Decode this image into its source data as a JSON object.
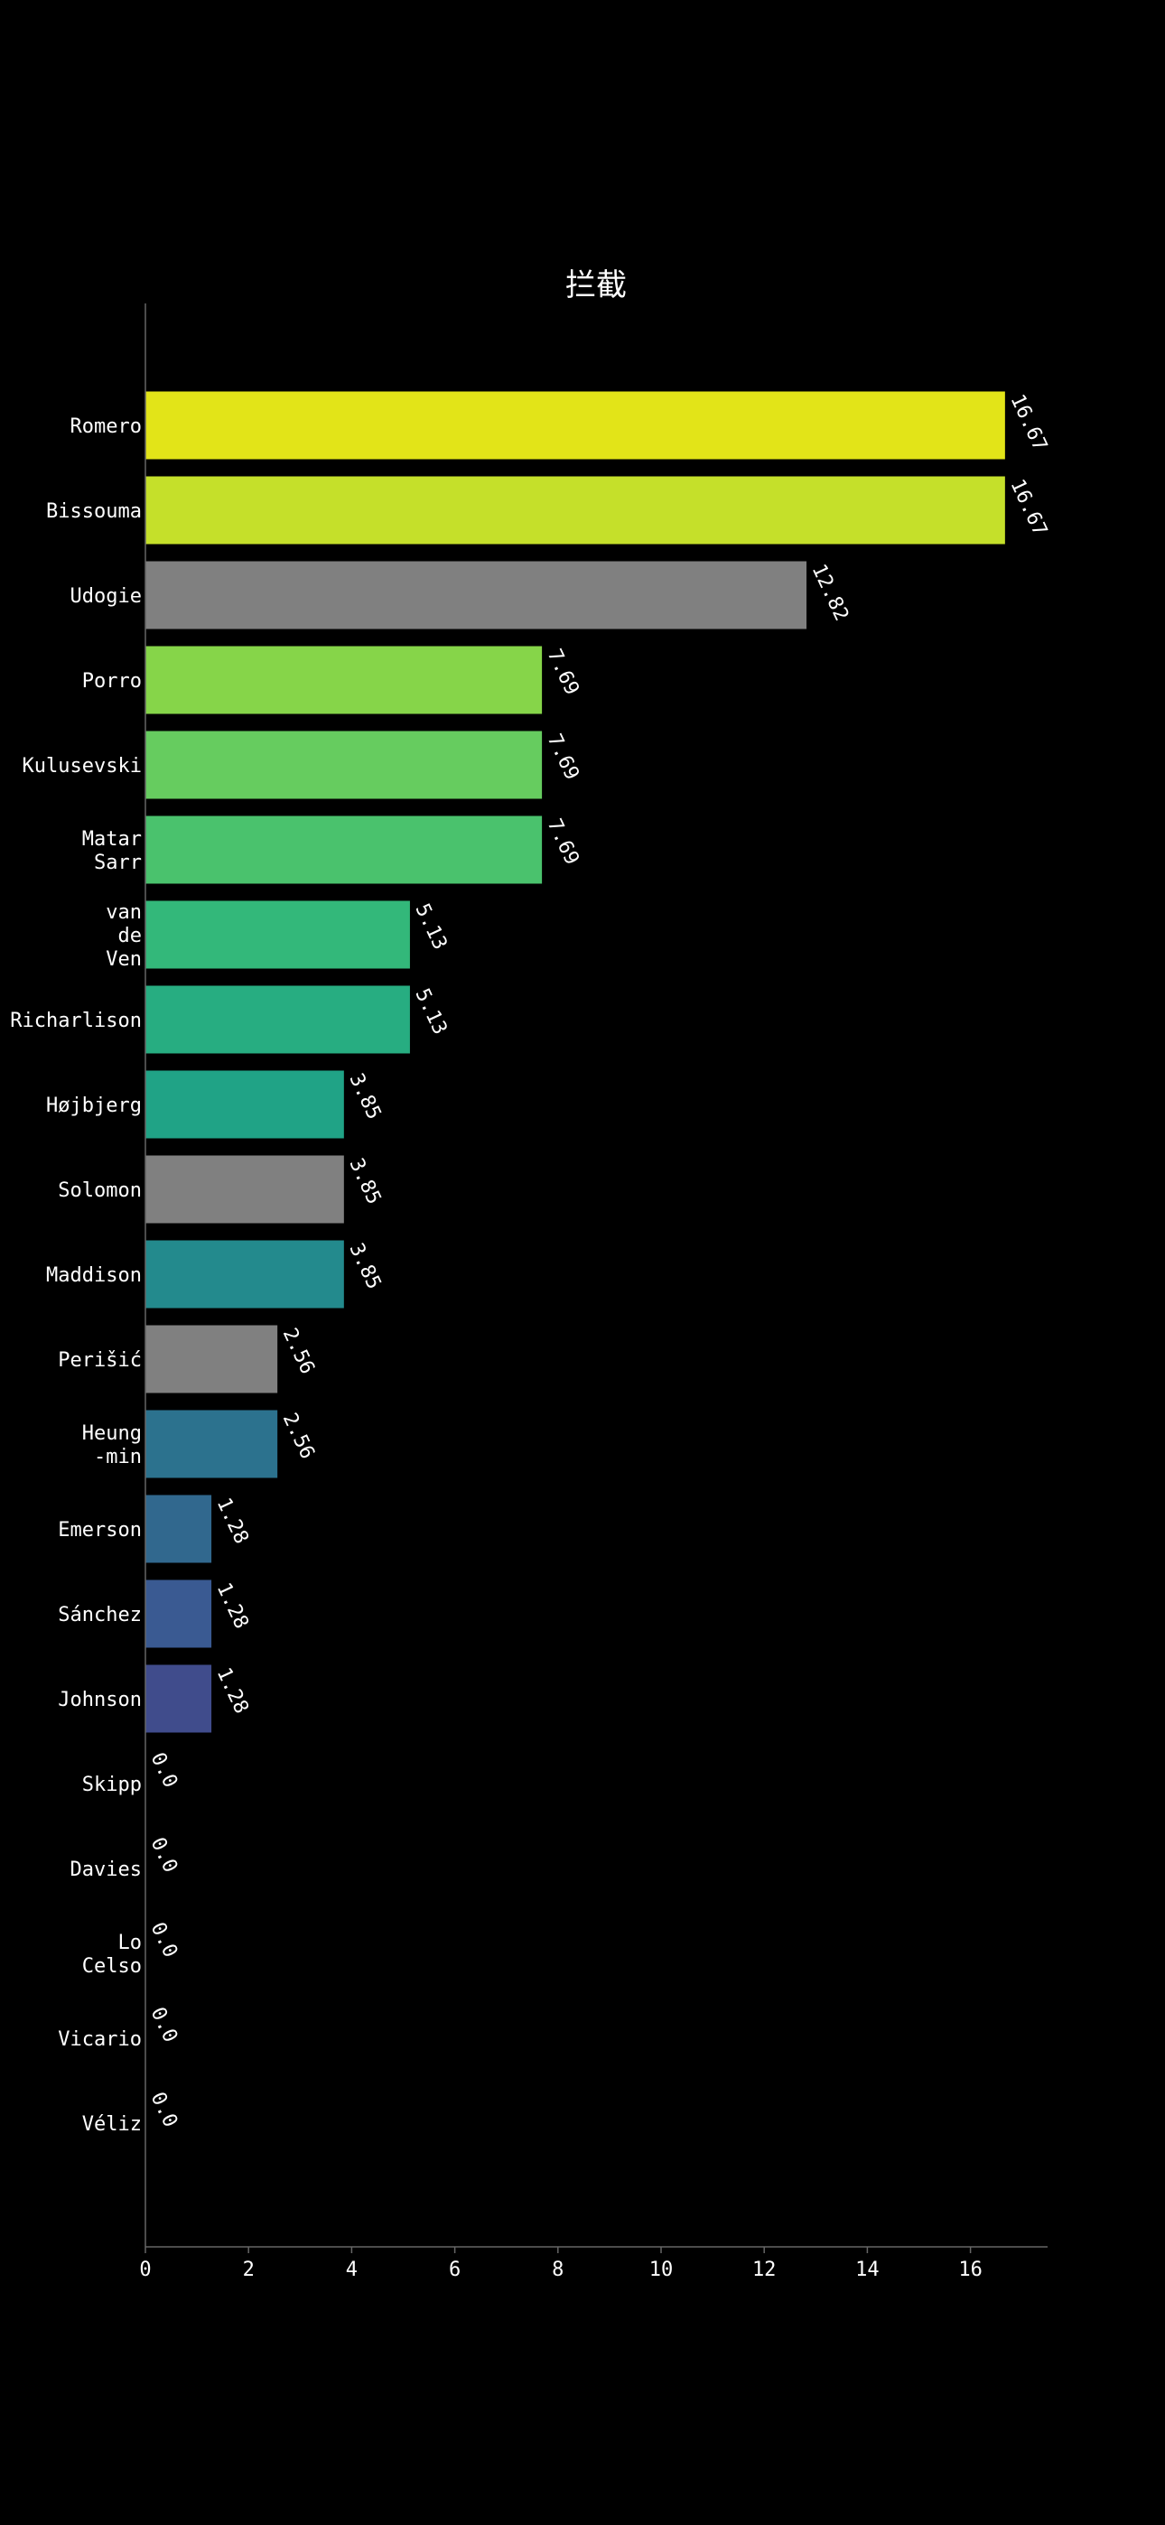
{
  "chart_data": {
    "type": "bar",
    "orientation": "horizontal",
    "title": "拦截",
    "xlabel": "",
    "ylabel": "",
    "xlim": [
      0,
      17.5
    ],
    "x_ticks": [
      0,
      2,
      4,
      6,
      8,
      10,
      12,
      14,
      16
    ],
    "grid": false,
    "background": "#000000",
    "categories": [
      {
        "label": "Romero",
        "lines": [
          "Romero"
        ],
        "value": 16.67,
        "value_label": "16.67",
        "color": "#e2e418"
      },
      {
        "label": "Bissouma",
        "lines": [
          "Bissouma"
        ],
        "value": 16.67,
        "value_label": "16.67",
        "color": "#c5e02a"
      },
      {
        "label": "Udogie",
        "lines": [
          "Udogie"
        ],
        "value": 12.82,
        "value_label": "12.82",
        "color": "#808080"
      },
      {
        "label": "Porro",
        "lines": [
          "Porro"
        ],
        "value": 7.69,
        "value_label": "7.69",
        "color": "#86d549"
      },
      {
        "label": "Kulusevski",
        "lines": [
          "Kulusevski"
        ],
        "value": 7.69,
        "value_label": "7.69",
        "color": "#66cc5f"
      },
      {
        "label": "Matar Sarr",
        "lines": [
          "Matar",
          "Sarr"
        ],
        "value": 7.69,
        "value_label": "7.69",
        "color": "#4ac26d"
      },
      {
        "label": "van de Ven",
        "lines": [
          "van",
          "de",
          "Ven"
        ],
        "value": 5.13,
        "value_label": "5.13",
        "color": "#33b87a"
      },
      {
        "label": "Richarlison",
        "lines": [
          "Richarlison"
        ],
        "value": 5.13,
        "value_label": "5.13",
        "color": "#27ad81"
      },
      {
        "label": "Højbjerg",
        "lines": [
          "Højbjerg"
        ],
        "value": 3.85,
        "value_label": "3.85",
        "color": "#20a386"
      },
      {
        "label": "Solomon",
        "lines": [
          "Solomon"
        ],
        "value": 3.85,
        "value_label": "3.85",
        "color": "#808080"
      },
      {
        "label": "Maddison",
        "lines": [
          "Maddison"
        ],
        "value": 3.85,
        "value_label": "3.85",
        "color": "#238a8d"
      },
      {
        "label": "Perišić",
        "lines": [
          "Perišić"
        ],
        "value": 2.56,
        "value_label": "2.56",
        "color": "#808080"
      },
      {
        "label": "Heung-min",
        "lines": [
          "Heung",
          "-min"
        ],
        "value": 2.56,
        "value_label": "2.56",
        "color": "#2c728e"
      },
      {
        "label": "Emerson",
        "lines": [
          "Emerson"
        ],
        "value": 1.28,
        "value_label": "1.28",
        "color": "#31688e"
      },
      {
        "label": "Sánchez",
        "lines": [
          "Sánchez"
        ],
        "value": 1.28,
        "value_label": "1.28",
        "color": "#3a5a92"
      },
      {
        "label": "Johnson",
        "lines": [
          "Johnson"
        ],
        "value": 1.28,
        "value_label": "1.28",
        "color": "#404c8c"
      },
      {
        "label": "Skipp",
        "lines": [
          "Skipp"
        ],
        "value": 0.0,
        "value_label": "0.0",
        "color": "#46327e"
      },
      {
        "label": "Davies",
        "lines": [
          "Davies"
        ],
        "value": 0.0,
        "value_label": "0.0",
        "color": "#472a7a"
      },
      {
        "label": "Lo Celso",
        "lines": [
          "Lo",
          "Celso"
        ],
        "value": 0.0,
        "value_label": "0.0",
        "color": "#482173"
      },
      {
        "label": "Vicario",
        "lines": [
          "Vicario"
        ],
        "value": 0.0,
        "value_label": "0.0",
        "color": "#48186a"
      },
      {
        "label": "Véliz",
        "lines": [
          "Véliz"
        ],
        "value": 0.0,
        "value_label": "0.0",
        "color": "#440154"
      }
    ]
  }
}
